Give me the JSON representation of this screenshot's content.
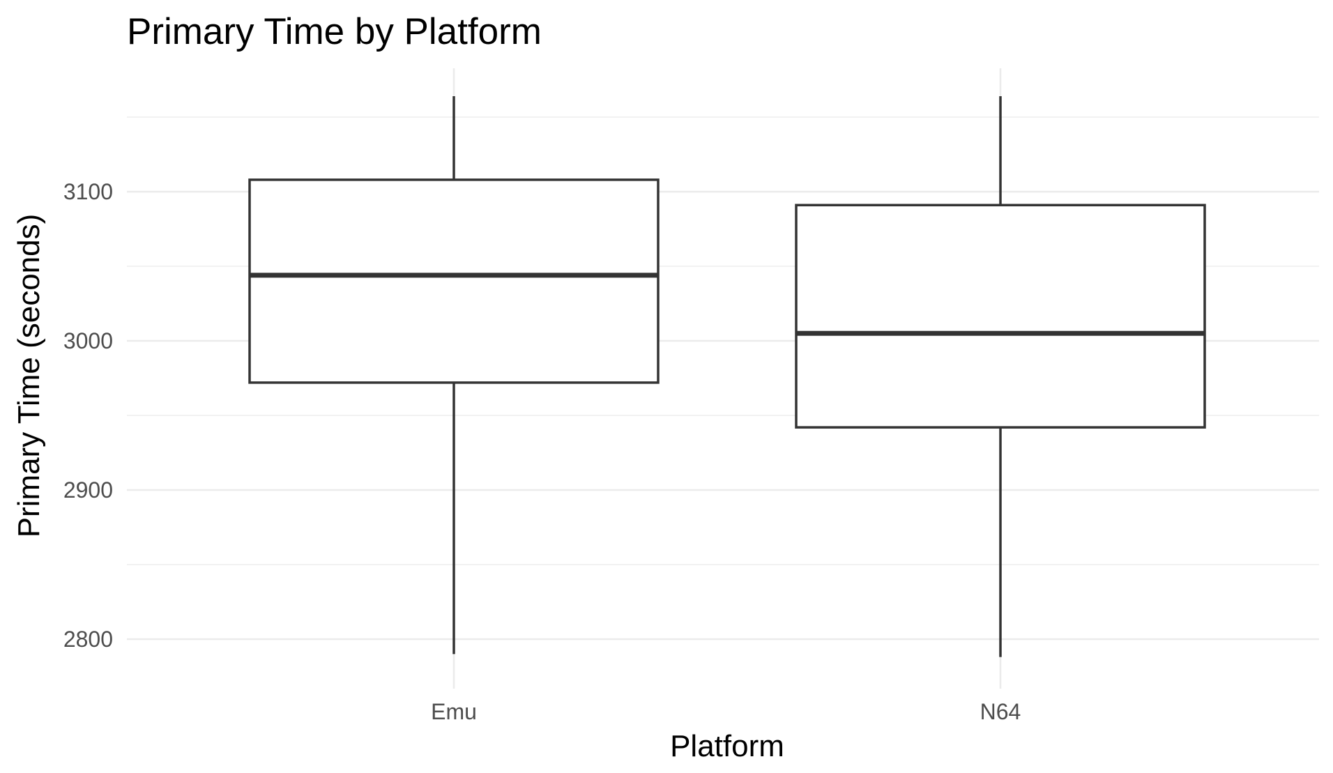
{
  "chart_data": {
    "type": "boxplot",
    "title": "Primary Time by Platform",
    "xlabel": "Platform",
    "ylabel": "Primary Time (seconds)",
    "categories": [
      "Emu",
      "N64"
    ],
    "boxes": [
      {
        "category": "Emu",
        "min": 2790,
        "q1": 2972,
        "median": 3044,
        "q3": 3108,
        "max": 3164
      },
      {
        "category": "N64",
        "min": 2788,
        "q1": 2942,
        "median": 3005,
        "q3": 3091,
        "max": 3164
      }
    ],
    "y_ticks": [
      2800,
      2900,
      3000,
      3100
    ],
    "y_tick_labels": [
      "2800",
      "2900",
      "3000",
      "3100"
    ],
    "ylim": [
      2776,
      3200
    ],
    "grid": true,
    "legend": "none",
    "colors": {
      "box_stroke": "#333333",
      "box_fill": "#ffffff",
      "grid": "#ebebeb",
      "tick_text": "#4d4d4d",
      "title_text": "#000000"
    }
  }
}
